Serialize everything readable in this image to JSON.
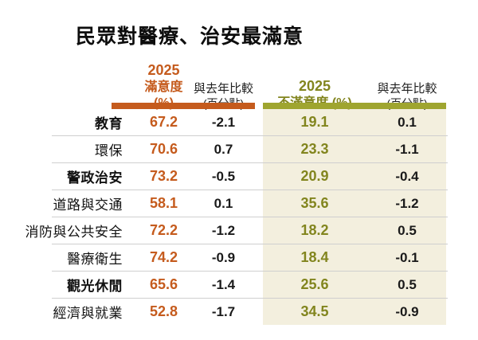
{
  "title": "民眾對醫療、治安最滿意",
  "colors": {
    "satisfaction_accent": "#c55b1d",
    "dissatisfaction_accent": "#82851e",
    "dissatisfaction_bar": "#9fa52f",
    "panel_background": "#f3efde",
    "divider": "#cfcfcf"
  },
  "table": {
    "headers": {
      "sat_year": "2025",
      "sat_label": "滿意度 (%)",
      "compare1_line1": "與去年比較",
      "compare1_line2": "(百分點)",
      "dis_year": "2025",
      "dis_label": "不滿意度 (%)",
      "compare2_line1": "與去年比較",
      "compare2_line2": "(百分點)"
    },
    "rows": [
      {
        "label": "教育",
        "emphasis": true,
        "satisfaction": "67.2",
        "sat_change": "-2.1",
        "dissatisfaction": "19.1",
        "dis_change": "0.1"
      },
      {
        "label": "環保",
        "emphasis": false,
        "satisfaction": "70.6",
        "sat_change": "0.7",
        "dissatisfaction": "23.3",
        "dis_change": "-1.1"
      },
      {
        "label": "警政治安",
        "emphasis": true,
        "satisfaction": "73.2",
        "sat_change": "-0.5",
        "dissatisfaction": "20.9",
        "dis_change": "-0.4"
      },
      {
        "label": "道路與交通",
        "emphasis": false,
        "satisfaction": "58.1",
        "sat_change": "0.1",
        "dissatisfaction": "35.6",
        "dis_change": "-1.2"
      },
      {
        "label": "消防與公共安全",
        "emphasis": false,
        "satisfaction": "72.2",
        "sat_change": "-1.2",
        "dissatisfaction": "18.2",
        "dis_change": "0.5"
      },
      {
        "label": "醫療衛生",
        "emphasis": false,
        "satisfaction": "74.2",
        "sat_change": "-0.9",
        "dissatisfaction": "18.4",
        "dis_change": "-0.1"
      },
      {
        "label": "觀光休閒",
        "emphasis": true,
        "satisfaction": "65.6",
        "sat_change": "-1.4",
        "dissatisfaction": "25.6",
        "dis_change": "0.5"
      },
      {
        "label": "經濟與就業",
        "emphasis": false,
        "satisfaction": "52.8",
        "sat_change": "-1.7",
        "dissatisfaction": "34.5",
        "dis_change": "-0.9"
      }
    ]
  },
  "chart_data": {
    "type": "table",
    "title": "民眾對醫療、治安最滿意",
    "columns": [
      "2025 滿意度 (%)",
      "與去年比較 (百分點)",
      "2025 不滿意度 (%)",
      "與去年比較 (百分點)"
    ],
    "categories": [
      "教育",
      "環保",
      "警政治安",
      "道路與交通",
      "消防與公共安全",
      "醫療衛生",
      "觀光休閒",
      "經濟與就業"
    ],
    "series": [
      {
        "name": "2025 滿意度 (%)",
        "values": [
          67.2,
          70.6,
          73.2,
          58.1,
          72.2,
          74.2,
          65.6,
          52.8
        ]
      },
      {
        "name": "滿意度與去年比較 (百分點)",
        "values": [
          -2.1,
          0.7,
          -0.5,
          0.1,
          -1.2,
          -0.9,
          -1.4,
          -1.7
        ]
      },
      {
        "name": "2025 不滿意度 (%)",
        "values": [
          19.1,
          23.3,
          20.9,
          35.6,
          18.2,
          18.4,
          25.6,
          34.5
        ]
      },
      {
        "name": "不滿意度與去年比較 (百分點)",
        "values": [
          0.1,
          -1.1,
          -0.4,
          -1.2,
          0.5,
          -0.1,
          0.5,
          -0.9
        ]
      }
    ],
    "layout": {
      "grid": "horizontal-row-dividers",
      "legend": "none",
      "highlight_panel": "dissatisfaction columns shaded beige"
    }
  }
}
